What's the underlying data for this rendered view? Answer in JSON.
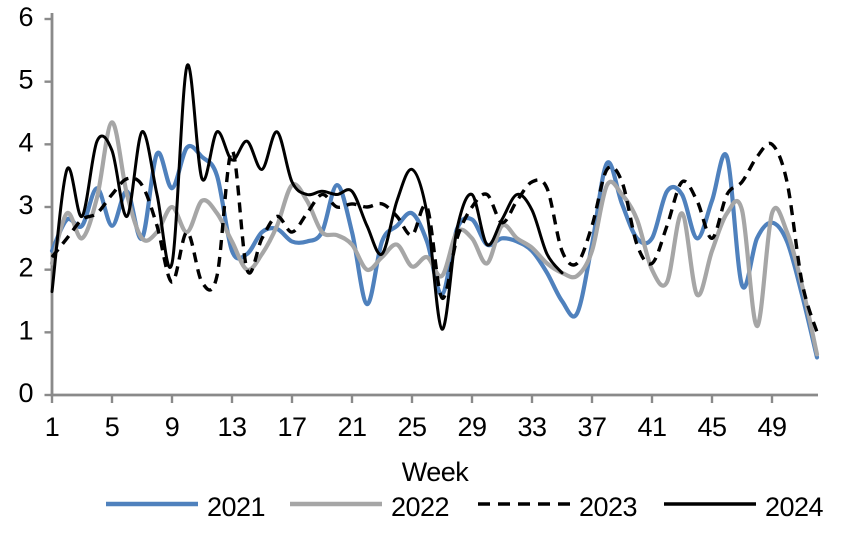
{
  "chart_data": {
    "type": "line",
    "title": "",
    "xlabel": "Week",
    "ylabel": "",
    "xlim": [
      1,
      52
    ],
    "ylim": [
      0,
      6
    ],
    "x_ticks": [
      1,
      5,
      9,
      13,
      17,
      21,
      25,
      29,
      33,
      37,
      41,
      45,
      49
    ],
    "y_ticks": [
      0,
      1,
      2,
      3,
      4,
      5,
      6
    ],
    "grid": false,
    "legend_position": "bottom",
    "axis_color": "#8A8A8A",
    "text_color": "#000000",
    "x": [
      1,
      2,
      3,
      4,
      5,
      6,
      7,
      8,
      9,
      10,
      11,
      12,
      13,
      14,
      15,
      16,
      17,
      18,
      19,
      20,
      21,
      22,
      23,
      24,
      25,
      26,
      27,
      28,
      29,
      30,
      31,
      32,
      33,
      34,
      35,
      36,
      37,
      38,
      39,
      40,
      41,
      42,
      43,
      44,
      45,
      46,
      47,
      48,
      49,
      50,
      51,
      52
    ],
    "series": [
      {
        "name": "2021",
        "color": "#4F81BD",
        "dash": "solid",
        "line_width": 4.2,
        "values": [
          2.3,
          2.8,
          2.7,
          3.3,
          2.7,
          3.25,
          2.5,
          3.85,
          3.3,
          3.95,
          3.8,
          3.5,
          2.3,
          2.25,
          2.6,
          2.65,
          2.45,
          2.45,
          2.6,
          3.35,
          2.6,
          1.45,
          2.45,
          2.7,
          2.9,
          2.45,
          1.6,
          2.65,
          2.8,
          2.4,
          2.5,
          2.45,
          2.3,
          1.95,
          1.5,
          1.3,
          2.4,
          3.7,
          3.05,
          2.5,
          2.5,
          3.25,
          3.2,
          2.5,
          3.1,
          3.8,
          1.75,
          2.5,
          2.75,
          2.45,
          1.6,
          0.6
        ]
      },
      {
        "name": "2022",
        "color": "#A6A6A6",
        "dash": "solid",
        "line_width": 4.2,
        "values": [
          2.1,
          2.9,
          2.5,
          3.15,
          4.35,
          3.2,
          2.5,
          2.6,
          3.0,
          2.6,
          3.1,
          2.9,
          2.45,
          2.0,
          2.25,
          2.7,
          3.35,
          3.1,
          2.6,
          2.55,
          2.4,
          2.0,
          2.2,
          2.4,
          2.05,
          2.2,
          1.9,
          2.6,
          2.5,
          2.1,
          2.7,
          2.5,
          2.35,
          2.1,
          1.95,
          1.9,
          2.3,
          3.35,
          3.2,
          2.8,
          2.0,
          1.8,
          2.9,
          1.6,
          2.3,
          2.9,
          2.95,
          1.1,
          2.9,
          2.6,
          1.75,
          0.65
        ]
      },
      {
        "name": "2023",
        "color": "#000000",
        "dash": "dashed",
        "line_width": 3.4,
        "values": [
          2.2,
          2.5,
          2.8,
          2.9,
          3.2,
          3.45,
          3.35,
          2.7,
          1.8,
          2.6,
          1.8,
          1.9,
          3.9,
          2.0,
          2.5,
          2.85,
          2.6,
          2.9,
          3.2,
          3.0,
          3.05,
          3.0,
          3.05,
          2.85,
          2.55,
          3.0,
          1.55,
          2.5,
          3.0,
          3.2,
          2.75,
          3.1,
          3.4,
          3.3,
          2.3,
          2.1,
          2.7,
          3.6,
          3.4,
          2.4,
          2.1,
          2.7,
          3.4,
          3.1,
          2.5,
          3.2,
          3.4,
          3.8,
          4.0,
          3.4,
          1.8,
          1.0
        ]
      },
      {
        "name": "2024",
        "color": "#000000",
        "dash": "solid",
        "line_width": 3.0,
        "values": [
          1.65,
          3.6,
          2.85,
          4.05,
          3.9,
          2.85,
          4.2,
          3.2,
          2.1,
          5.25,
          3.45,
          4.2,
          3.75,
          4.05,
          3.6,
          4.2,
          3.4,
          3.2,
          3.25,
          3.2,
          3.25,
          2.7,
          2.25,
          3.1,
          3.6,
          2.9,
          1.05,
          2.65,
          3.2,
          2.4,
          2.8,
          3.2,
          2.95,
          2.25,
          1.95,
          null,
          null,
          null,
          null,
          null,
          null,
          null,
          null,
          null,
          null,
          null,
          null,
          null,
          null,
          null,
          null,
          null
        ]
      }
    ],
    "legend": [
      "2021",
      "2022",
      "2023",
      "2024"
    ]
  }
}
